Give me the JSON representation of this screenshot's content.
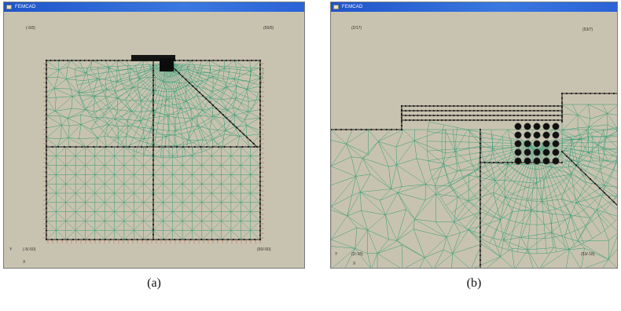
{
  "panels": [
    {
      "title": "FEMCAD",
      "coords": {
        "top_left": "(-5/0)",
        "top_right": "(50/0)",
        "bottom_left": "(-5/-50)",
        "bottom_right": "(50/-50)"
      },
      "axis": {
        "y": "Y",
        "x": "X"
      }
    },
    {
      "title": "FEMCAD",
      "coords": {
        "top_left": "(2/17)",
        "top_right": "(53/7)",
        "bottom_left": "(2/-18)",
        "bottom_right": "(53/-18)"
      },
      "axis": {
        "y": "Y",
        "x": "X"
      }
    }
  ],
  "captions": [
    "(a)",
    "(b)"
  ],
  "colors": {
    "background": "#c8c3b0",
    "mesh": "#2e9b72",
    "nodes": "#1b1b1b",
    "supports": "#c8745a",
    "titlebar": "#2b62d6"
  }
}
